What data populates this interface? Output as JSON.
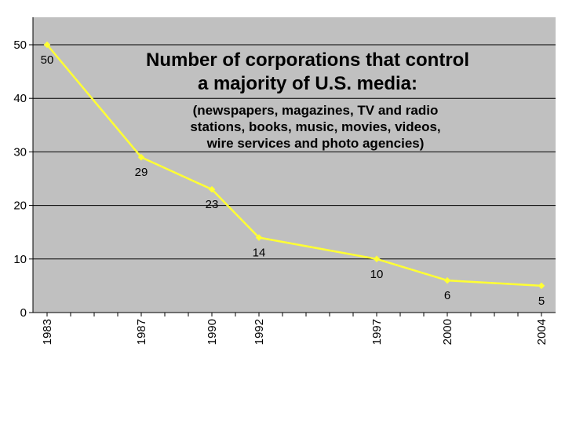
{
  "chart_data": {
    "type": "line",
    "title_lines": [
      "Number of corporations that control",
      "a majority of U.S. media:"
    ],
    "subtitle_lines": [
      "(newspapers, magazines, TV and radio",
      "stations, books, music, movies, videos,",
      "wire services and photo agencies)"
    ],
    "xlabel": "",
    "ylabel": "",
    "x": [
      1983,
      1987,
      1990,
      1992,
      1997,
      2000,
      2004
    ],
    "x_tick_labels": [
      "1983",
      "1987",
      "1990",
      "1992",
      "1997",
      "2000",
      "2004"
    ],
    "series": [
      {
        "values": [
          50,
          29,
          23,
          14,
          10,
          6,
          5
        ]
      }
    ],
    "data_labels": [
      "50",
      "29",
      "23",
      "14",
      "10",
      "6",
      "5"
    ],
    "ylim": [
      0,
      50
    ],
    "yticks": [
      0,
      10,
      20,
      30,
      40,
      50
    ],
    "ytick_labels": [
      "0",
      "10",
      "20",
      "30",
      "40",
      "50"
    ],
    "grid": "horizontal",
    "legend": "none",
    "colors": {
      "plot_background": "#C0C0C0",
      "line": "#FFFF33",
      "gridline": "#000000",
      "axis": "#000000"
    }
  }
}
